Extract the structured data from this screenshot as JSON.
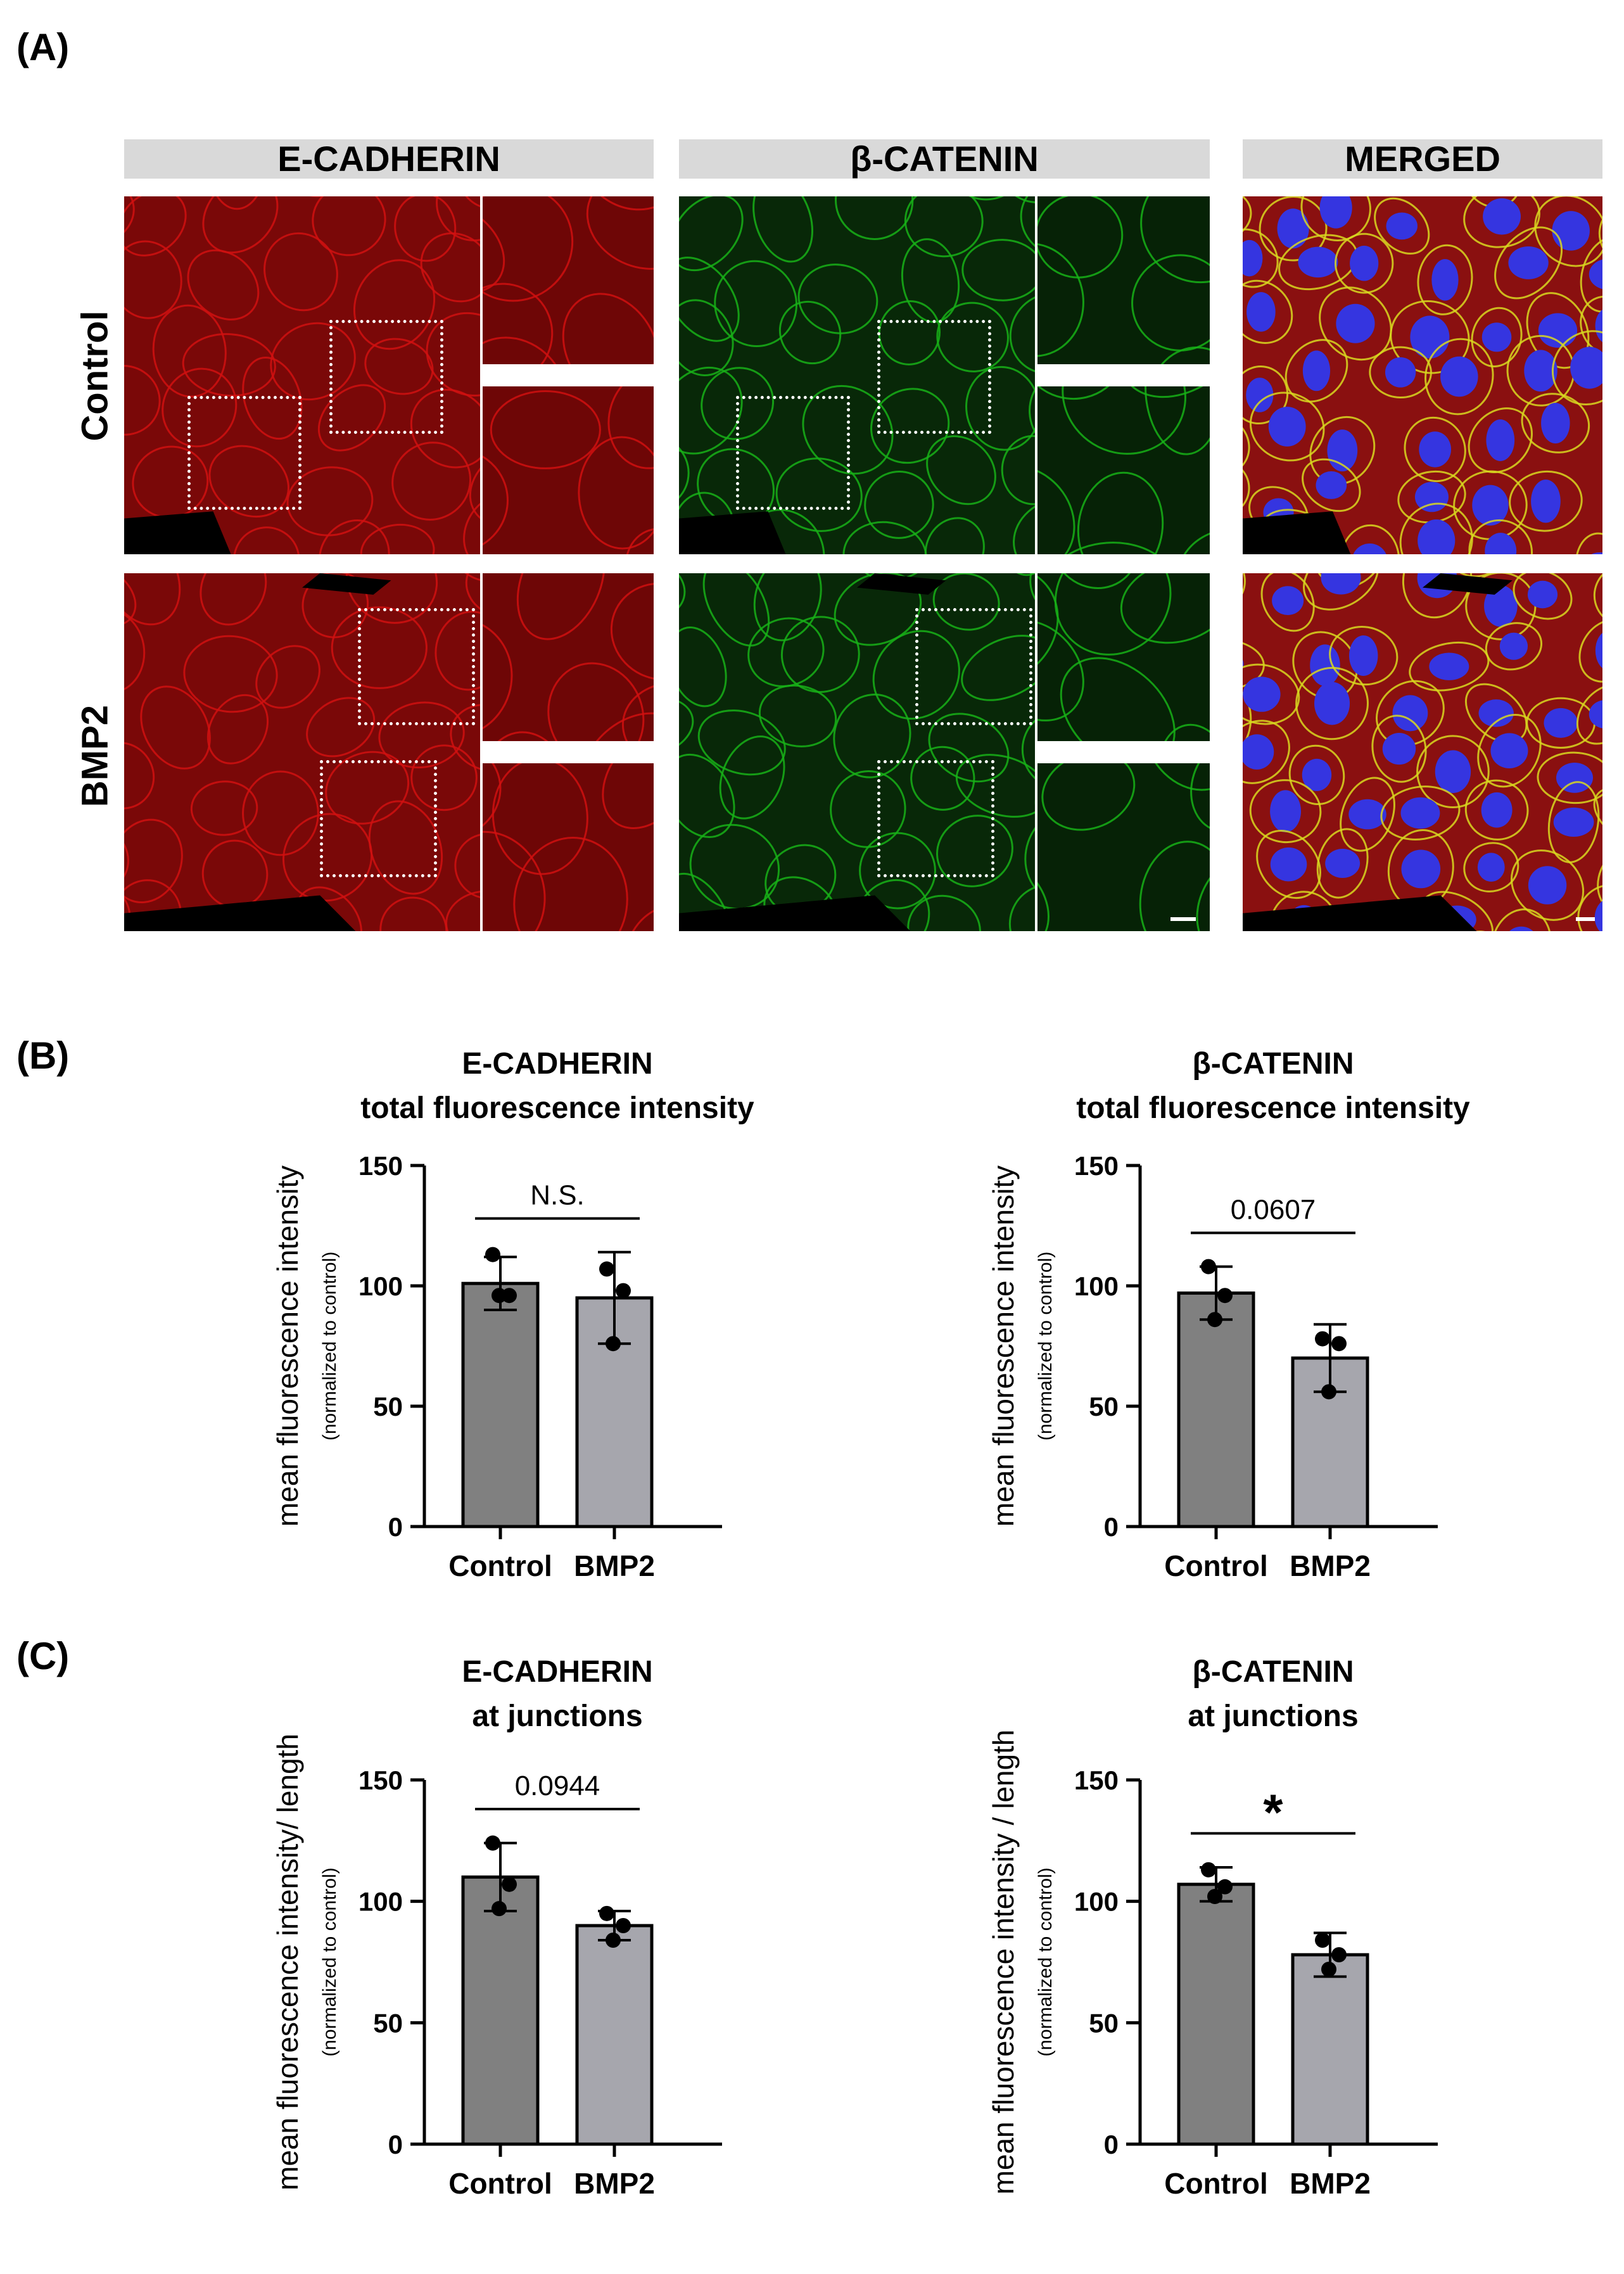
{
  "panels": {
    "A": "(A)",
    "B": "(B)",
    "C": "(C)"
  },
  "columns": [
    "E-CADHERIN",
    "β-CATENIN",
    "MERGED"
  ],
  "rows": [
    "Control",
    "BMP2"
  ],
  "colors": {
    "ecad": "#d01010",
    "bcat": "#18b018",
    "nuclei": "#3535e0",
    "bar_control": "#808080",
    "bar_bmp2": "#a6a6ad"
  },
  "chart_data": [
    {
      "type": "bar",
      "panel": "B",
      "title": [
        "E-CADHERIN",
        "total fluorescence intensity"
      ],
      "ylabel": "mean fluorescence intensity",
      "ylabel_sub": "(normalized to control)",
      "categories": [
        "Control",
        "BMP2"
      ],
      "values": [
        101,
        95
      ],
      "errors": [
        11,
        19
      ],
      "points": [
        [
          113,
          96,
          96
        ],
        [
          107,
          98,
          76
        ]
      ],
      "ylim": [
        0,
        150
      ],
      "yticks": [
        0,
        50,
        100,
        150
      ],
      "significance": "N.S."
    },
    {
      "type": "bar",
      "panel": "B",
      "title": [
        "β-CATENIN",
        "total fluorescence intensity"
      ],
      "ylabel": "mean fluorescence intensity",
      "ylabel_sub": "(normalized to control)",
      "categories": [
        "Control",
        "BMP2"
      ],
      "values": [
        97,
        70
      ],
      "errors": [
        11,
        14
      ],
      "points": [
        [
          108,
          96,
          86
        ],
        [
          78,
          76,
          56
        ]
      ],
      "ylim": [
        0,
        150
      ],
      "yticks": [
        0,
        50,
        100,
        150
      ],
      "significance": "0.0607"
    },
    {
      "type": "bar",
      "panel": "C",
      "title": [
        "E-CADHERIN",
        "at junctions"
      ],
      "ylabel": "mean fluorescence intensity/ length",
      "ylabel_sub": "(normalized to control)",
      "categories": [
        "Control",
        "BMP2"
      ],
      "values": [
        110,
        90
      ],
      "errors": [
        14,
        6
      ],
      "points": [
        [
          124,
          107,
          97
        ],
        [
          95,
          90,
          84
        ]
      ],
      "ylim": [
        0,
        150
      ],
      "yticks": [
        0,
        50,
        100,
        150
      ],
      "significance": "0.0944"
    },
    {
      "type": "bar",
      "panel": "C",
      "title": [
        "β-CATENIN",
        "at junctions"
      ],
      "ylabel": "mean fluorescence intensity / length",
      "ylabel_sub": "(normalized to control)",
      "categories": [
        "Control",
        "BMP2"
      ],
      "values": [
        107,
        78
      ],
      "errors": [
        7,
        9
      ],
      "points": [
        [
          113,
          106,
          102
        ],
        [
          84,
          78,
          72
        ]
      ],
      "ylim": [
        0,
        150
      ],
      "yticks": [
        0,
        50,
        100,
        150
      ],
      "significance": "*"
    }
  ]
}
